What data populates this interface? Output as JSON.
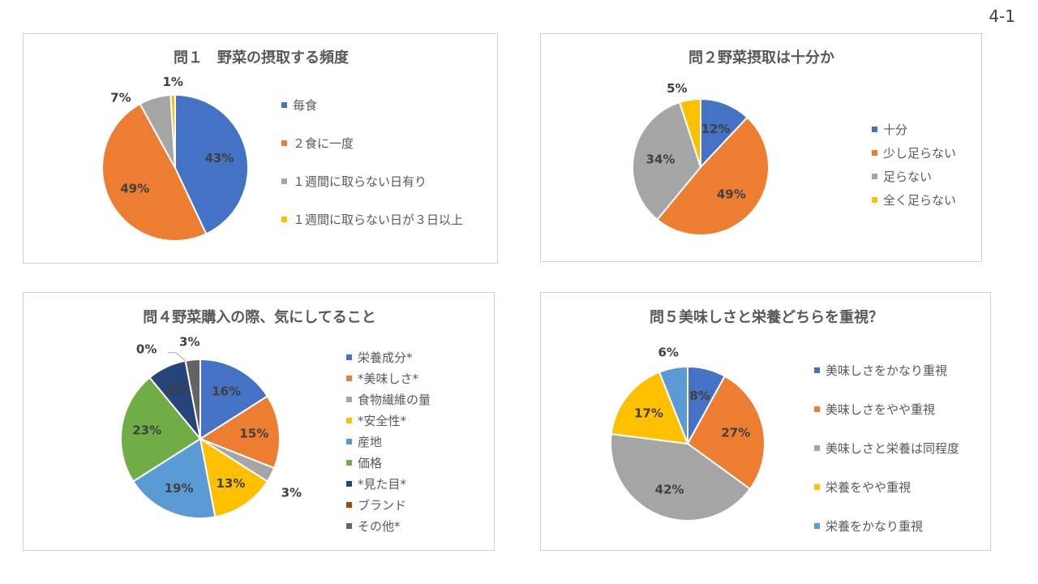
{
  "page_number": "4-1",
  "colors": {
    "blue": "#4472C4",
    "orange": "#ED7D31",
    "gray": "#A5A5A5",
    "yellow": "#FFC000",
    "lightblue": "#5B9BD5",
    "green": "#70AD47",
    "navy": "#264478",
    "brown": "#9E480E",
    "darkgray": "#636363"
  },
  "chart_data": [
    {
      "type": "pie",
      "title": "問１　野菜の摂取する頻度",
      "categories": [
        "毎食",
        "２食に一度",
        "１週間に取らない日有り",
        "１週間に取らない日が３日以上"
      ],
      "values": [
        43,
        49,
        7,
        1
      ],
      "labels": [
        "43%",
        "49%",
        "7%",
        "1%"
      ],
      "colors": [
        "#4472C4",
        "#ED7D31",
        "#A5A5A5",
        "#FFC000"
      ],
      "legend_position": "right"
    },
    {
      "type": "pie",
      "title": "問２野菜摂取は十分か",
      "categories": [
        "十分",
        "少し足らない",
        "足らない",
        "全く足らない"
      ],
      "values": [
        12,
        49,
        34,
        5
      ],
      "labels": [
        "12%",
        "49%",
        "34%",
        "5%"
      ],
      "colors": [
        "#4472C4",
        "#ED7D31",
        "#A5A5A5",
        "#FFC000"
      ],
      "legend_position": "right"
    },
    {
      "type": "pie",
      "title": "問４野菜購入の際、気にしてること",
      "categories": [
        "栄養成分*",
        "*美味しさ*",
        "食物繊維の量",
        "*安全性*",
        "産地",
        "価格",
        "*見た目*",
        "ブランド",
        "その他*"
      ],
      "values": [
        16,
        15,
        3,
        13,
        19,
        23,
        8,
        0,
        3
      ],
      "labels": [
        "16%",
        "15%",
        "3%",
        "13%",
        "19%",
        "23%",
        "8%",
        "0%",
        "3%"
      ],
      "colors": [
        "#4472C4",
        "#ED7D31",
        "#A5A5A5",
        "#FFC000",
        "#5B9BD5",
        "#70AD47",
        "#264478",
        "#9E480E",
        "#636363"
      ],
      "legend_position": "right"
    },
    {
      "type": "pie",
      "title": "問５美味しさと栄養どちらを重視？",
      "categories": [
        "美味しさをかなり重視",
        "美味しさをやや重視",
        "美味しさと栄養は同程度",
        "栄養をやや重視",
        "栄養をかなり重視"
      ],
      "values": [
        8,
        27,
        42,
        17,
        6
      ],
      "labels": [
        "8%",
        "27%",
        "42%",
        "17%",
        "6%"
      ],
      "colors": [
        "#4472C4",
        "#ED7D31",
        "#A5A5A5",
        "#FFC000",
        "#5B9BD5"
      ],
      "legend_position": "right"
    }
  ]
}
